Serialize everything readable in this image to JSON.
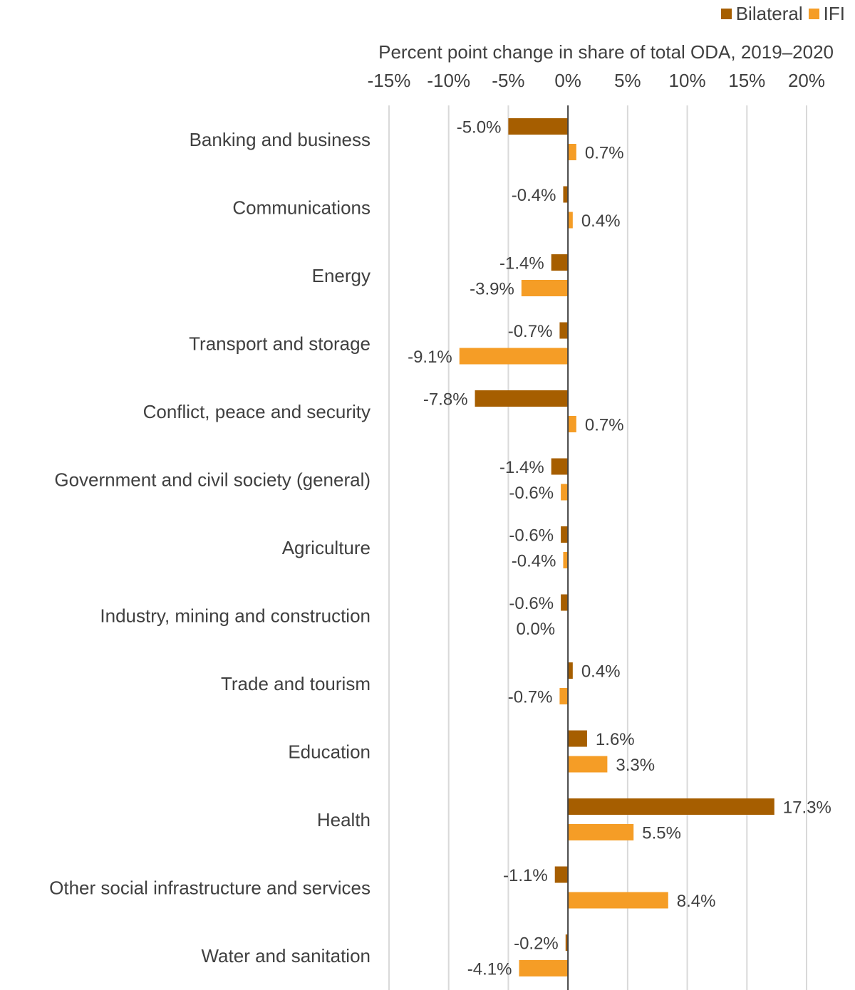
{
  "chart_data": {
    "type": "bar",
    "orientation": "horizontal",
    "xlabel": "Percent point change in share of total ODA, 2019–2020",
    "xlim": [
      -15,
      20
    ],
    "xticks": [
      -15,
      -10,
      -5,
      0,
      5,
      10,
      15,
      20
    ],
    "xtick_labels": [
      "-15%",
      "-10%",
      "-5%",
      "0%",
      "5%",
      "10%",
      "15%",
      "20%"
    ],
    "grid": "vertical",
    "legend_position": "top-right",
    "categories": [
      "Banking and business",
      "Communications",
      "Energy",
      "Transport and storage",
      "Conflict, peace and security",
      "Government and civil society (general)",
      "Agriculture",
      "Industry, mining and construction",
      "Trade and tourism",
      "Education",
      "Health",
      "Other social infrastructure and services",
      "Water and sanitation"
    ],
    "series": [
      {
        "name": "Bilateral",
        "color": "#A65E00",
        "values": [
          -5.0,
          -0.4,
          -1.4,
          -0.7,
          -7.8,
          -1.4,
          -0.6,
          -0.6,
          0.4,
          1.6,
          17.3,
          -1.1,
          -0.2
        ],
        "labels": [
          "-5.0%",
          "-0.4%",
          "-1.4%",
          "-0.7%",
          "-7.8%",
          "-1.4%",
          "-0.6%",
          "-0.6%",
          "0.4%",
          "1.6%",
          "17.3%",
          "-1.1%",
          "-0.2%"
        ]
      },
      {
        "name": "IFI",
        "color": "#F59D26",
        "values": [
          0.7,
          0.4,
          -3.9,
          -9.1,
          0.7,
          -0.6,
          -0.4,
          0.0,
          -0.7,
          3.3,
          5.5,
          8.4,
          -4.1
        ],
        "labels": [
          "0.7%",
          "0.4%",
          "-3.9%",
          "-9.1%",
          "0.7%",
          "-0.6%",
          "-0.4%",
          "0.0%",
          "-0.7%",
          "3.3%",
          "5.5%",
          "8.4%",
          "-4.1%"
        ]
      }
    ]
  }
}
